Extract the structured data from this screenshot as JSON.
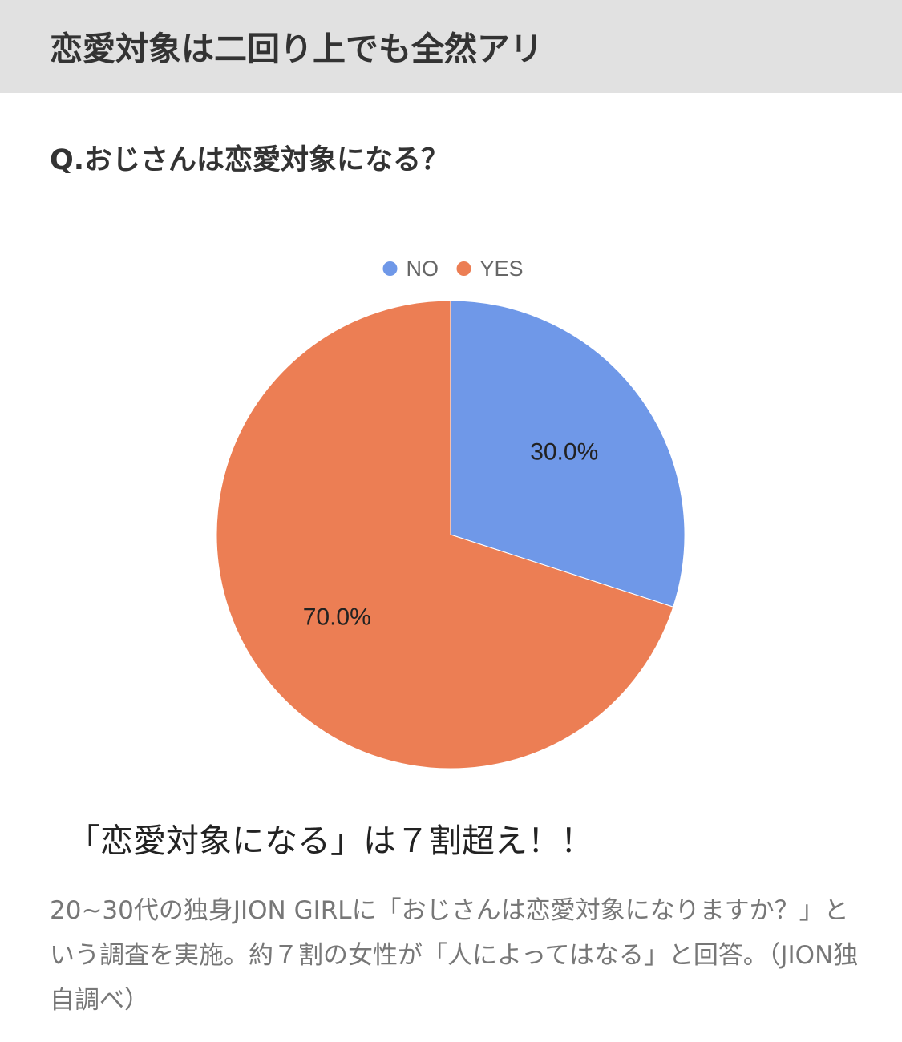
{
  "header": {
    "title": "恋愛対象は二回り上でも全然アリ"
  },
  "question": "Q.おじさんは恋愛対象になる？",
  "chart_data": {
    "type": "pie",
    "title": "",
    "legend_position": "top",
    "slices": [
      {
        "label": "NO",
        "value": 30.0,
        "display": "30.0%",
        "color": "#6f98e8"
      },
      {
        "label": "YES",
        "value": 70.0,
        "display": "70.0%",
        "color": "#ec7e54"
      }
    ]
  },
  "caption": "「恋愛対象になる」は７割超え！！",
  "description": "20~30代の独身JION GIRLに「おじさんは恋愛対象になりますか？」という調査を実施。約７割の女性が「人によってはなる」と回答。（JION独自調べ）"
}
